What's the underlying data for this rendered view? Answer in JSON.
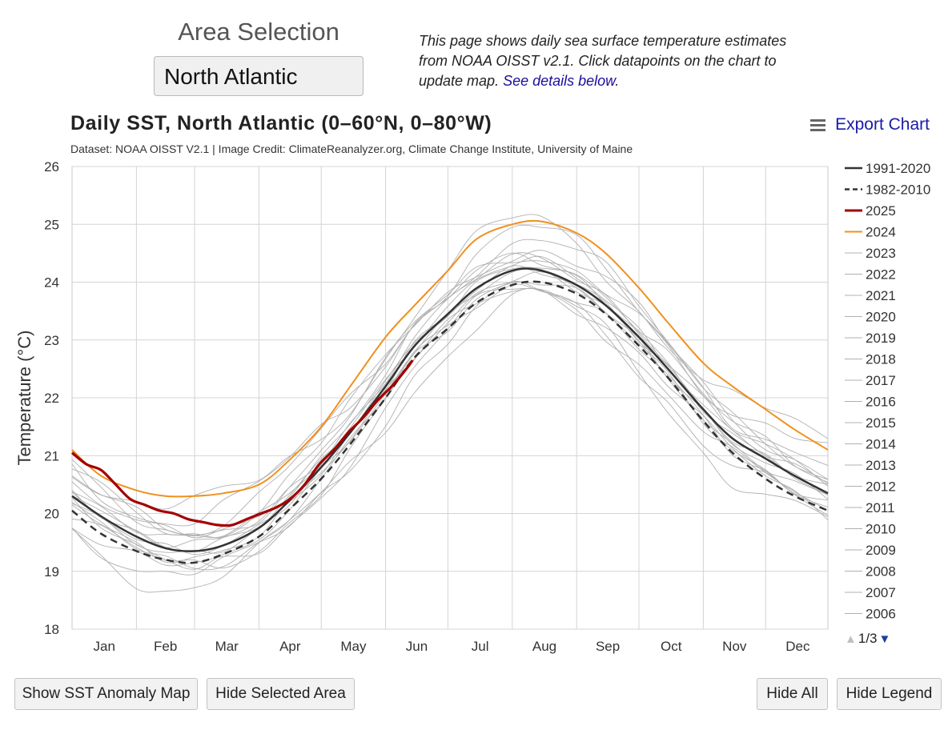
{
  "header": {
    "area_title": "Area Selection",
    "area_value": "North Atlantic",
    "description": "This page shows daily sea surface temperature estimates from NOAA OISST v2.1. Click datapoints on the chart to update map.",
    "details_link": "See details below",
    "description_end": "."
  },
  "chart_header": {
    "export_label": "Export Chart"
  },
  "legend_pager": {
    "text": "1/3",
    "up_icon": "triangle-up-icon",
    "down_icon": "triangle-down-icon"
  },
  "buttons": {
    "anomaly_map": "Show SST Anomaly Map",
    "hide_area": "Hide Selected Area",
    "hide_all": "Hide All",
    "hide_legend": "Hide Legend"
  },
  "icons": {
    "menu": "hamburger-menu-icon"
  },
  "colors": {
    "y2025": "#a30000",
    "y2024": "#f0901e",
    "climatology": "#333333",
    "other_years": "#b0b0b0",
    "link": "#1a0d9c"
  },
  "chart_data": {
    "type": "line",
    "title": "Daily SST, North Atlantic (0–60°N, 0–80°W)",
    "subtitle": "Dataset: NOAA OISST V2.1 | Image Credit: ClimateReanalyzer.org, Climate Change Institute, University of Maine",
    "xlabel": "",
    "ylabel": "Temperature (°C)",
    "ylim": [
      18,
      26
    ],
    "yticks": [
      18,
      19,
      20,
      21,
      22,
      23,
      24,
      25,
      26
    ],
    "xlim": [
      1,
      365
    ],
    "x_categories": [
      "Jan",
      "Feb",
      "Mar",
      "Apr",
      "May",
      "Jun",
      "Jul",
      "Aug",
      "Sep",
      "Oct",
      "Nov",
      "Dec"
    ],
    "grid": true,
    "legend_position": "right",
    "series": [
      {
        "name": "1991-2020",
        "style": "solid",
        "color": "#333333",
        "width": 2.5,
        "x": [
          1,
          15,
          32,
          46,
          60,
          74,
          91,
          105,
          121,
          135,
          152,
          166,
          182,
          196,
          213,
          227,
          244,
          258,
          274,
          288,
          305,
          319,
          335,
          349,
          365
        ],
        "y": [
          20.3,
          19.95,
          19.6,
          19.4,
          19.35,
          19.45,
          19.75,
          20.2,
          20.8,
          21.4,
          22.2,
          22.9,
          23.45,
          23.9,
          24.2,
          24.2,
          23.95,
          23.6,
          23.05,
          22.5,
          21.8,
          21.3,
          20.95,
          20.65,
          20.35
        ]
      },
      {
        "name": "1982-2010",
        "style": "dashed",
        "color": "#333333",
        "width": 2.5,
        "x": [
          1,
          15,
          32,
          46,
          60,
          74,
          91,
          105,
          121,
          135,
          152,
          166,
          182,
          196,
          213,
          227,
          244,
          258,
          274,
          288,
          305,
          319,
          335,
          349,
          365
        ],
        "y": [
          20.05,
          19.65,
          19.35,
          19.2,
          19.15,
          19.3,
          19.6,
          20.05,
          20.6,
          21.2,
          22.0,
          22.7,
          23.2,
          23.65,
          23.95,
          24.0,
          23.8,
          23.45,
          22.9,
          22.35,
          21.6,
          21.05,
          20.6,
          20.3,
          20.05
        ]
      },
      {
        "name": "2025",
        "style": "solid",
        "color": "#a30000",
        "width": 3.2,
        "x": [
          1,
          8,
          15,
          22,
          29,
          36,
          43,
          50,
          57,
          64,
          71,
          78,
          85,
          92,
          99,
          106,
          113,
          120,
          127,
          134,
          141,
          148,
          155,
          162,
          165
        ],
        "y": [
          21.05,
          20.85,
          20.75,
          20.5,
          20.25,
          20.15,
          20.05,
          20.0,
          19.9,
          19.85,
          19.8,
          19.8,
          19.9,
          20.0,
          20.1,
          20.25,
          20.5,
          20.85,
          21.1,
          21.4,
          21.65,
          21.95,
          22.2,
          22.5,
          22.65
        ]
      },
      {
        "name": "2024",
        "style": "solid",
        "color": "#f0901e",
        "width": 2,
        "x": [
          1,
          15,
          32,
          46,
          60,
          74,
          91,
          105,
          121,
          135,
          152,
          166,
          182,
          196,
          213,
          227,
          244,
          258,
          274,
          288,
          305,
          319,
          335,
          349,
          365
        ],
        "y": [
          21.1,
          20.65,
          20.4,
          20.3,
          20.3,
          20.35,
          20.5,
          20.9,
          21.5,
          22.2,
          23.05,
          23.6,
          24.2,
          24.75,
          25.0,
          25.05,
          24.85,
          24.5,
          23.9,
          23.3,
          22.6,
          22.2,
          21.8,
          21.45,
          21.1
        ]
      },
      {
        "name": "2023",
        "style": "solid",
        "color": "#b0b0b0",
        "width": 1
      },
      {
        "name": "2022",
        "style": "solid",
        "color": "#b0b0b0",
        "width": 1
      },
      {
        "name": "2021",
        "style": "solid",
        "color": "#b0b0b0",
        "width": 1
      },
      {
        "name": "2020",
        "style": "solid",
        "color": "#b0b0b0",
        "width": 1
      },
      {
        "name": "2019",
        "style": "solid",
        "color": "#b0b0b0",
        "width": 1
      },
      {
        "name": "2018",
        "style": "solid",
        "color": "#b0b0b0",
        "width": 1
      },
      {
        "name": "2017",
        "style": "solid",
        "color": "#b0b0b0",
        "width": 1
      },
      {
        "name": "2016",
        "style": "solid",
        "color": "#b0b0b0",
        "width": 1
      },
      {
        "name": "2015",
        "style": "solid",
        "color": "#b0b0b0",
        "width": 1
      },
      {
        "name": "2014",
        "style": "solid",
        "color": "#b0b0b0",
        "width": 1
      },
      {
        "name": "2013",
        "style": "solid",
        "color": "#b0b0b0",
        "width": 1
      },
      {
        "name": "2012",
        "style": "solid",
        "color": "#b0b0b0",
        "width": 1
      },
      {
        "name": "2011",
        "style": "solid",
        "color": "#b0b0b0",
        "width": 1
      },
      {
        "name": "2010",
        "style": "solid",
        "color": "#b0b0b0",
        "width": 1
      },
      {
        "name": "2009",
        "style": "solid",
        "color": "#b0b0b0",
        "width": 1
      },
      {
        "name": "2008",
        "style": "solid",
        "color": "#b0b0b0",
        "width": 1
      },
      {
        "name": "2007",
        "style": "solid",
        "color": "#b0b0b0",
        "width": 1
      },
      {
        "name": "2006",
        "style": "solid",
        "color": "#b0b0b0",
        "width": 1
      }
    ],
    "other_years_band": {
      "note": "remaining years plotted in light gray, spread around climatology",
      "offsets": [
        -0.75,
        -0.6,
        -0.5,
        -0.4,
        -0.3,
        -0.22,
        -0.15,
        -0.08,
        0.0,
        0.08,
        0.15,
        0.22,
        0.3,
        0.4,
        0.5,
        0.62,
        0.75,
        0.9
      ]
    }
  }
}
